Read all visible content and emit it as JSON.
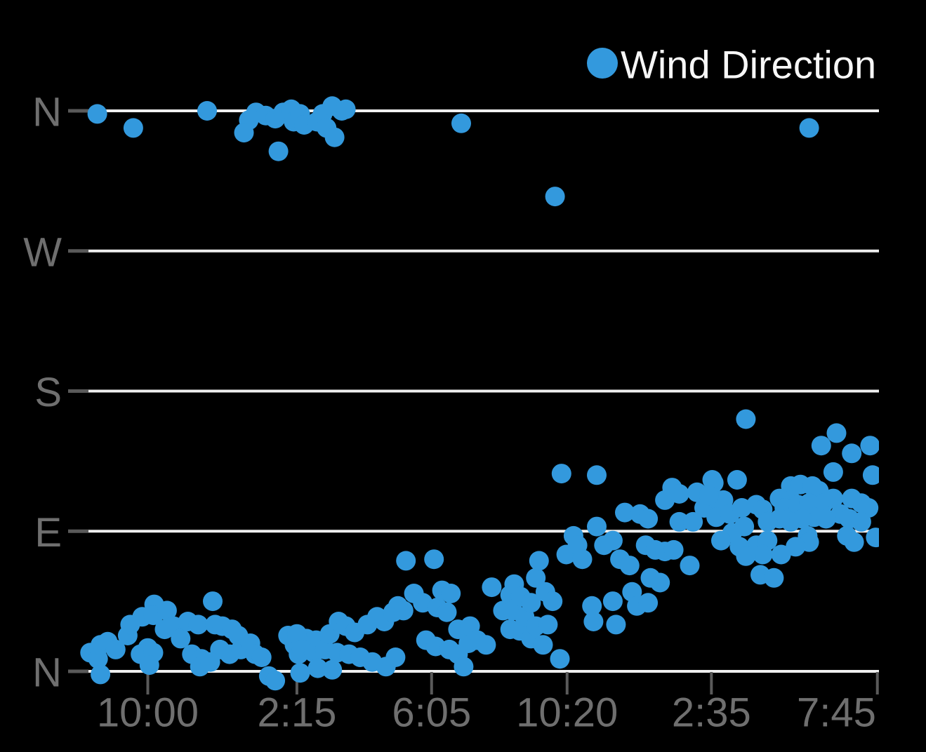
{
  "colors": {
    "background": "#000000",
    "point": "#3399dd",
    "grid_line": "#efefef",
    "tick_mark": "#5a5a5a",
    "axis_label": "#6f6f6f",
    "legend_text": "#f7f7f7"
  },
  "chart_data": {
    "type": "scatter",
    "legend": {
      "position": "top-right",
      "items": [
        {
          "label": "Wind Direction",
          "color": "#3399dd"
        }
      ]
    },
    "x_axis": {
      "note": "pos = fraction of plot width (irregular time axis)",
      "ticks": [
        {
          "label": "10:00",
          "pos": 0.088
        },
        {
          "label": "2:15",
          "pos": 0.274
        },
        {
          "label": "6:05",
          "pos": 0.442
        },
        {
          "label": "10:20",
          "pos": 0.611
        },
        {
          "label": "2:35",
          "pos": 0.791
        },
        {
          "label": "7:45",
          "pos": 0.998,
          "label_pos": 0.947
        }
      ]
    },
    "y_axis": {
      "unit": "compass direction in degrees (0=N bottom, 90=E, 180=S, 270=W, 360=N top)",
      "range": [
        0,
        360
      ],
      "grid": true,
      "ticks": [
        {
          "label": "N",
          "value": 360
        },
        {
          "label": "W",
          "value": 270
        },
        {
          "label": "S",
          "value": 180
        },
        {
          "label": "E",
          "value": 90
        },
        {
          "label": "N",
          "value": 0
        }
      ]
    },
    "series": [
      {
        "name": "Wind Direction",
        "color": "#3399dd",
        "marker_radius_px": 14,
        "points": [
          [
            0.025,
            358
          ],
          [
            0.07,
            349
          ],
          [
            0.162,
            360
          ],
          [
            0.214,
            354
          ],
          [
            0.208,
            346
          ],
          [
            0.223,
            359
          ],
          [
            0.235,
            357
          ],
          [
            0.247,
            355
          ],
          [
            0.257,
            359
          ],
          [
            0.267,
            361
          ],
          [
            0.27,
            353
          ],
          [
            0.278,
            358
          ],
          [
            0.283,
            351
          ],
          [
            0.299,
            353
          ],
          [
            0.306,
            358
          ],
          [
            0.318,
            363
          ],
          [
            0.311,
            349
          ],
          [
            0.321,
            343
          ],
          [
            0.33,
            360
          ],
          [
            0.335,
            361
          ],
          [
            0.251,
            334
          ],
          [
            0.479,
            352
          ],
          [
            0.596,
            305
          ],
          [
            0.913,
            349
          ],
          [
            0.016,
            12
          ],
          [
            0.026,
            8
          ],
          [
            0.029,
            17
          ],
          [
            0.038,
            19
          ],
          [
            0.029,
            -2
          ],
          [
            0.048,
            14
          ],
          [
            0.063,
            23
          ],
          [
            0.066,
            30
          ],
          [
            0.081,
            35
          ],
          [
            0.096,
            43
          ],
          [
            0.095,
            36
          ],
          [
            0.112,
            39
          ],
          [
            0.088,
            15
          ],
          [
            0.079,
            11
          ],
          [
            0.095,
            12
          ],
          [
            0.09,
            4
          ],
          [
            0.109,
            27
          ],
          [
            0.12,
            29
          ],
          [
            0.129,
            21
          ],
          [
            0.138,
            32
          ],
          [
            0.151,
            30
          ],
          [
            0.143,
            11
          ],
          [
            0.155,
            8
          ],
          [
            0.169,
            45
          ],
          [
            0.172,
            30
          ],
          [
            0.181,
            29
          ],
          [
            0.193,
            27
          ],
          [
            0.201,
            23
          ],
          [
            0.178,
            14
          ],
          [
            0.19,
            11
          ],
          [
            0.204,
            14
          ],
          [
            0.216,
            18
          ],
          [
            0.222,
            11
          ],
          [
            0.23,
            9
          ],
          [
            0.239,
            -3
          ],
          [
            0.247,
            -6
          ],
          [
            0.263,
            23
          ],
          [
            0.271,
            17
          ],
          [
            0.276,
            11
          ],
          [
            0.278,
            -1
          ],
          [
            0.153,
            3
          ],
          [
            0.166,
            6
          ],
          [
            0.286,
            21
          ],
          [
            0.298,
            20
          ],
          [
            0.274,
            24
          ],
          [
            0.28,
            14
          ],
          [
            0.295,
            12
          ],
          [
            0.309,
            14
          ],
          [
            0.315,
            24
          ],
          [
            0.326,
            32
          ],
          [
            0.324,
            12
          ],
          [
            0.335,
            29
          ],
          [
            0.339,
            11
          ],
          [
            0.346,
            25
          ],
          [
            0.353,
            9
          ],
          [
            0.362,
            30
          ],
          [
            0.368,
            6
          ],
          [
            0.374,
            35
          ],
          [
            0.383,
            32
          ],
          [
            0.385,
            3
          ],
          [
            0.394,
            38
          ],
          [
            0.397,
            9
          ],
          [
            0.4,
            42
          ],
          [
            0.407,
            39
          ],
          [
            0.41,
            71
          ],
          [
            0.42,
            50
          ],
          [
            0.431,
            44
          ],
          [
            0.435,
            20
          ],
          [
            0.445,
            72
          ],
          [
            0.447,
            16
          ],
          [
            0.449,
            41
          ],
          [
            0.455,
            52
          ],
          [
            0.461,
            38
          ],
          [
            0.464,
            14
          ],
          [
            0.466,
            50
          ],
          [
            0.475,
            11
          ],
          [
            0.475,
            27
          ],
          [
            0.482,
            3
          ],
          [
            0.488,
            18
          ],
          [
            0.49,
            29
          ],
          [
            0.499,
            20
          ],
          [
            0.51,
            17
          ],
          [
            0.517,
            54
          ],
          [
            0.531,
            39
          ],
          [
            0.54,
            49
          ],
          [
            0.54,
            27
          ],
          [
            0.3,
            2
          ],
          [
            0.318,
            1
          ],
          [
            0.604,
            127
          ],
          [
            0.648,
            126
          ],
          [
            0.543,
            39
          ],
          [
            0.545,
            56
          ],
          [
            0.552,
            26
          ],
          [
            0.553,
            48
          ],
          [
            0.558,
            35
          ],
          [
            0.566,
            44
          ],
          [
            0.566,
            21
          ],
          [
            0.572,
            60
          ],
          [
            0.572,
            29
          ],
          [
            0.576,
            71
          ],
          [
            0.581,
            17
          ],
          [
            0.584,
            51
          ],
          [
            0.587,
            30
          ],
          [
            0.593,
            45
          ],
          [
            0.602,
            8
          ],
          [
            0.61,
            75
          ],
          [
            0.619,
            87
          ],
          [
            0.624,
            81
          ],
          [
            0.63,
            72
          ],
          [
            0.642,
            42
          ],
          [
            0.644,
            32
          ],
          [
            0.648,
            93
          ],
          [
            0.657,
            81
          ],
          [
            0.668,
            84
          ],
          [
            0.668,
            45
          ],
          [
            0.672,
            30
          ],
          [
            0.677,
            72
          ],
          [
            0.683,
            102
          ],
          [
            0.689,
            68
          ],
          [
            0.692,
            51
          ],
          [
            0.698,
            42
          ],
          [
            0.702,
            101
          ],
          [
            0.709,
            81
          ],
          [
            0.712,
            98
          ],
          [
            0.712,
            44
          ],
          [
            0.715,
            60
          ],
          [
            0.721,
            78
          ],
          [
            0.727,
            57
          ],
          [
            0.733,
            110
          ],
          [
            0.733,
            77
          ],
          [
            0.742,
            118
          ],
          [
            0.744,
            78
          ],
          [
            0.751,
            114
          ],
          [
            0.751,
            96
          ],
          [
            0.764,
            68
          ],
          [
            0.768,
            96
          ],
          [
            0.773,
            115
          ],
          [
            0.782,
            105
          ],
          [
            0.792,
            123
          ],
          [
            0.799,
            110
          ],
          [
            0.834,
            162
          ],
          [
            0.947,
            153
          ],
          [
            0.928,
            145
          ],
          [
            0.989,
            145
          ],
          [
            0.966,
            140
          ],
          [
            0.943,
            128
          ],
          [
            0.992,
            126
          ],
          [
            0.823,
            123
          ],
          [
            0.794,
            121
          ],
          [
            0.806,
            110
          ],
          [
            0.788,
            113
          ],
          [
            0.797,
            99
          ],
          [
            0.814,
            101
          ],
          [
            0.829,
            105
          ],
          [
            0.847,
            107
          ],
          [
            0.855,
            104
          ],
          [
            0.89,
            119
          ],
          [
            0.902,
            120
          ],
          [
            0.917,
            119
          ],
          [
            0.925,
            116
          ],
          [
            0.89,
            110
          ],
          [
            0.876,
            111
          ],
          [
            0.882,
            105
          ],
          [
            0.899,
            107
          ],
          [
            0.913,
            108
          ],
          [
            0.931,
            108
          ],
          [
            0.943,
            111
          ],
          [
            0.966,
            111
          ],
          [
            0.978,
            108
          ],
          [
            0.987,
            105
          ],
          [
            0.952,
            101
          ],
          [
            0.963,
            98
          ],
          [
            0.978,
            96
          ],
          [
            0.919,
            99
          ],
          [
            0.934,
            98
          ],
          [
            0.904,
            98
          ],
          [
            0.89,
            96
          ],
          [
            0.876,
            98
          ],
          [
            0.861,
            96
          ],
          [
            0.832,
            93
          ],
          [
            0.817,
            89
          ],
          [
            0.803,
            84
          ],
          [
            0.826,
            80
          ],
          [
            0.847,
            81
          ],
          [
            0.861,
            84
          ],
          [
            0.855,
            75
          ],
          [
            0.834,
            74
          ],
          [
            0.911,
            87
          ],
          [
            0.913,
            83
          ],
          [
            0.896,
            80
          ],
          [
            0.878,
            75
          ],
          [
            0.96,
            87
          ],
          [
            0.969,
            83
          ],
          [
            0.996,
            86
          ],
          [
            0.852,
            62
          ],
          [
            0.869,
            60
          ]
        ]
      }
    ]
  }
}
